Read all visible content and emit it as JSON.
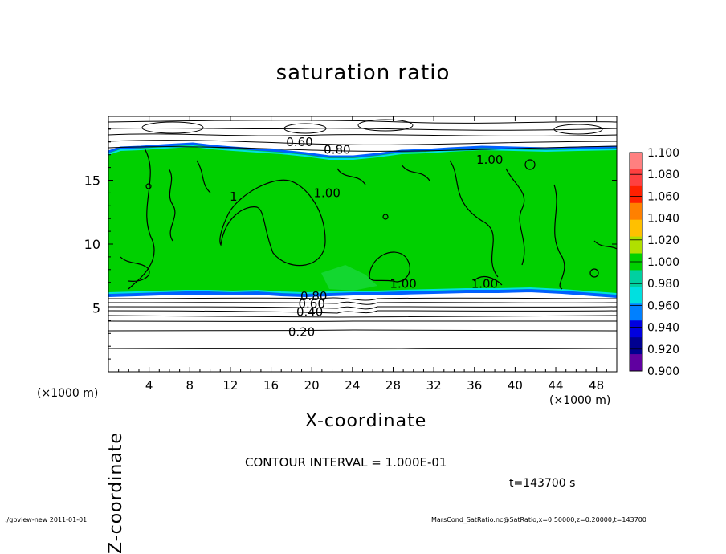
{
  "chart_data": {
    "type": "heatmap",
    "title": "saturation ratio",
    "xlabel": "X-coordinate",
    "ylabel": "Z-coordinate",
    "x_unit_label": "(×1000 m)",
    "x_unit_label_right": "(×1000 m)",
    "xlim": [
      0,
      50
    ],
    "ylim": [
      0,
      20
    ],
    "x_ticks": [
      4,
      8,
      12,
      16,
      20,
      24,
      28,
      32,
      36,
      40,
      44,
      48
    ],
    "y_ticks": [
      5,
      10,
      15
    ],
    "colorbar": {
      "levels": [
        "1.100",
        "1.080",
        "1.060",
        "1.040",
        "1.020",
        "1.000",
        "0.980",
        "0.960",
        "0.940",
        "0.920",
        "0.900"
      ],
      "colors": [
        "#ff8080",
        "#ff4040",
        "#ff2000",
        "#ff8000",
        "#ffc000",
        "#b0e000",
        "#00d000",
        "#00d0a0",
        "#00e0e0",
        "#0080ff",
        "#0000e0",
        "#000090",
        "#6000a0"
      ]
    },
    "contour_labels": [
      {
        "text": "0.60",
        "x": 18.8,
        "z": 18.0
      },
      {
        "text": "0.80",
        "x": 22.5,
        "z": 17.4
      },
      {
        "text": "1.00",
        "x": 21.5,
        "z": 14.0
      },
      {
        "text": "1",
        "x": 12.3,
        "z": 13.7
      },
      {
        "text": "1.00",
        "x": 29.0,
        "z": 6.9
      },
      {
        "text": "1.00",
        "x": 37.0,
        "z": 6.9
      },
      {
        "text": "1.00",
        "x": 37.5,
        "z": 16.6
      },
      {
        "text": "0.80",
        "x": 20.2,
        "z": 5.9
      },
      {
        "text": "0.60",
        "x": 20.0,
        "z": 5.3
      },
      {
        "text": "0.40",
        "x": 19.8,
        "z": 4.7
      },
      {
        "text": "0.20",
        "x": 19.0,
        "z": 3.1
      }
    ],
    "field_value_interior": 1.0,
    "contour_interval_text": "CONTOUR INTERVAL = 1.000E-01",
    "time_text": "t=143700 s"
  },
  "footer": {
    "left": "./gpview-new  2011-01-01",
    "right": "MarsCond_SatRatio.nc@SatRatio,x=0:50000,z=0:20000,t=143700"
  }
}
